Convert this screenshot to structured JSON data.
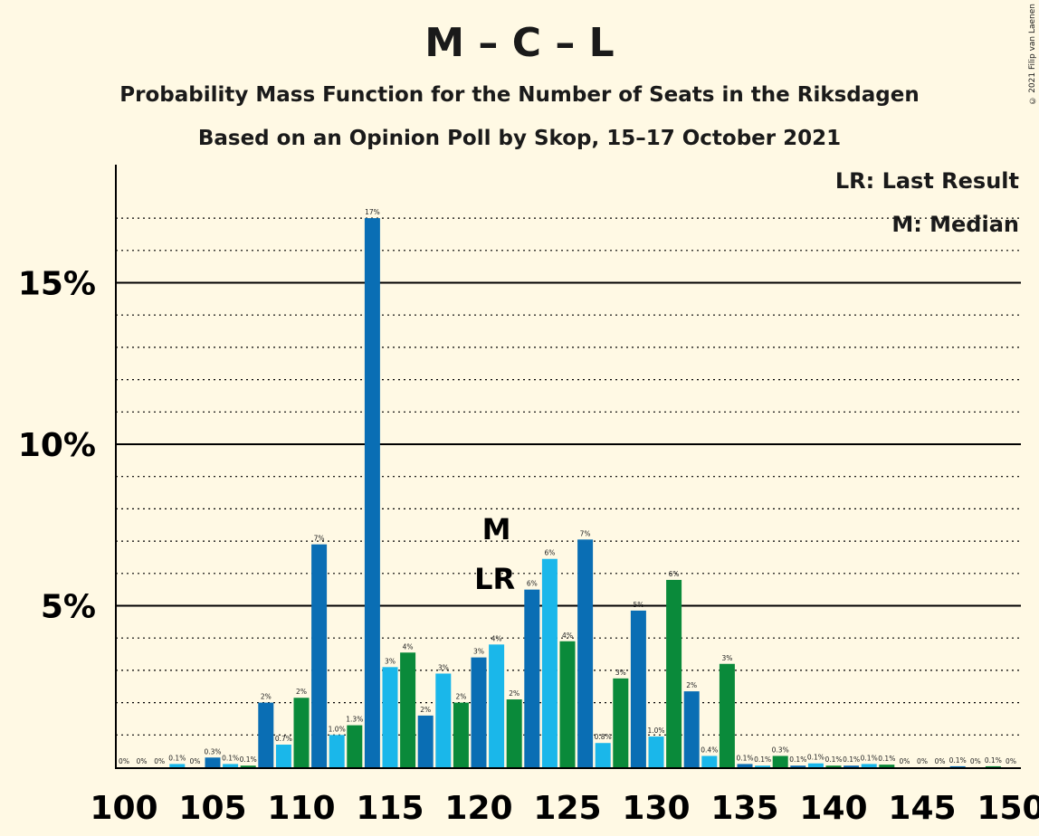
{
  "title": "M – C – L",
  "subtitle": "Probability Mass Function for the Number of Seats in the Riksdagen",
  "subtitle2": "Based on an Opinion Poll by Skop, 15–17 October 2021",
  "copyright": "© 2021 Filip van Laenen",
  "legend": {
    "last_result": "LR: Last Result",
    "median": "M: Median"
  },
  "colors": {
    "background": "#FFF9E4",
    "light_blue": "#1AB7EA",
    "green": "#0A8A3A",
    "dark_blue": "#0A6EB4"
  },
  "chart_data": {
    "type": "bar",
    "title": "M – C – L",
    "xlabel": "",
    "ylabel": "",
    "ylim": [
      0,
      18
    ],
    "x_ticks": [
      100,
      105,
      110,
      115,
      120,
      125,
      130,
      135,
      140,
      145,
      150
    ],
    "y_ticks": [
      {
        "value": 5,
        "label": "5%"
      },
      {
        "value": 10,
        "label": "10%"
      },
      {
        "value": 15,
        "label": "15%"
      }
    ],
    "markers": {
      "median": {
        "seat": 121,
        "label": "M"
      },
      "last_result": {
        "seat": 121,
        "label": "LR"
      }
    },
    "bars": [
      {
        "x": 100,
        "v": 0,
        "label": "0%"
      },
      {
        "x": 101,
        "v": 0,
        "label": "0%"
      },
      {
        "x": 102,
        "v": 0,
        "label": "0%"
      },
      {
        "x": 103,
        "v": 0.1,
        "label": "0.1%"
      },
      {
        "x": 104,
        "v": 0,
        "label": "0%"
      },
      {
        "x": 105,
        "v": 0.3,
        "label": "0.3%"
      },
      {
        "x": 106,
        "v": 0.1,
        "label": "0.1%"
      },
      {
        "x": 107,
        "v": 0.05,
        "label": "0.1%"
      },
      {
        "x": 108,
        "v": 2.0,
        "label": "2%"
      },
      {
        "x": 109,
        "v": 0.7,
        "label": "0.7%"
      },
      {
        "x": 110,
        "v": 2.15,
        "label": "2%"
      },
      {
        "x": 111,
        "v": 6.9,
        "label": "7%"
      },
      {
        "x": 112,
        "v": 1.0,
        "label": "1.0%"
      },
      {
        "x": 113,
        "v": 1.3,
        "label": "1.3%"
      },
      {
        "x": 114,
        "v": 17.0,
        "label": "17%"
      },
      {
        "x": 115,
        "v": 3.1,
        "label": "3%"
      },
      {
        "x": 116,
        "v": 3.55,
        "label": "4%"
      },
      {
        "x": 117,
        "v": 1.6,
        "label": "2%"
      },
      {
        "x": 118,
        "v": 2.9,
        "label": "3%"
      },
      {
        "x": 119,
        "v": 2.0,
        "label": "2%"
      },
      {
        "x": 120,
        "v": 3.4,
        "label": "3%"
      },
      {
        "x": 121,
        "v": 3.8,
        "label": "4%"
      },
      {
        "x": 122,
        "v": 2.1,
        "label": "2%"
      },
      {
        "x": 123,
        "v": 5.5,
        "label": "6%"
      },
      {
        "x": 124,
        "v": 6.45,
        "label": "6%"
      },
      {
        "x": 125,
        "v": 3.9,
        "label": "4%"
      },
      {
        "x": 126,
        "v": 7.05,
        "label": "7%"
      },
      {
        "x": 127,
        "v": 0.75,
        "label": "0.8%"
      },
      {
        "x": 128,
        "v": 2.75,
        "label": "3%"
      },
      {
        "x": 129,
        "v": 4.85,
        "label": "5%"
      },
      {
        "x": 130,
        "v": 0.95,
        "label": "1.0%"
      },
      {
        "x": 131,
        "v": 5.8,
        "label": "6%"
      },
      {
        "x": 132,
        "v": 2.35,
        "label": "2%"
      },
      {
        "x": 133,
        "v": 0.35,
        "label": "0.4%"
      },
      {
        "x": 134,
        "v": 3.2,
        "label": "3%"
      },
      {
        "x": 135,
        "v": 0.1,
        "label": "0.1%"
      },
      {
        "x": 136,
        "v": 0.05,
        "label": "0.1%"
      },
      {
        "x": 137,
        "v": 0.35,
        "label": "0.3%"
      },
      {
        "x": 138,
        "v": 0.05,
        "label": "0.1%"
      },
      {
        "x": 139,
        "v": 0.12,
        "label": "0.1%"
      },
      {
        "x": 140,
        "v": 0.05,
        "label": "0.1%"
      },
      {
        "x": 141,
        "v": 0.05,
        "label": "0.1%"
      },
      {
        "x": 142,
        "v": 0.1,
        "label": "0.1%"
      },
      {
        "x": 143,
        "v": 0.08,
        "label": "0.1%"
      },
      {
        "x": 144,
        "v": 0,
        "label": "0%"
      },
      {
        "x": 145,
        "v": 0,
        "label": "0%"
      },
      {
        "x": 146,
        "v": 0,
        "label": "0%"
      },
      {
        "x": 147,
        "v": 0.03,
        "label": "0.1%"
      },
      {
        "x": 148,
        "v": 0,
        "label": "0%"
      },
      {
        "x": 149,
        "v": 0.03,
        "label": "0.1%"
      },
      {
        "x": 150,
        "v": 0,
        "label": "0%"
      }
    ]
  }
}
